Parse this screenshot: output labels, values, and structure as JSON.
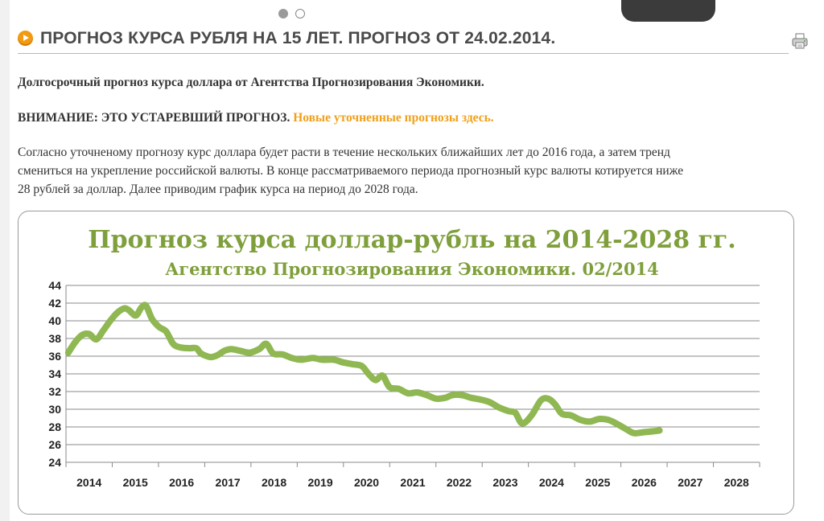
{
  "header": {
    "title": "ПРОГНОЗ КУРСА РУБЛЯ НА 15 ЛЕТ. ПРОГНОЗ ОТ 24.02.2014."
  },
  "icons": {
    "bullet": "orange-arrow-bullet-icon",
    "print": "print-icon"
  },
  "article": {
    "subtitle": "Долгосрочный прогноз курса доллара от Агентства Прогнозирования Экономики.",
    "warning": "ВНИМАНИЕ: ЭТО УСТАРЕВШИЙ ПРОГНОЗ.",
    "warning_link": "Новые уточненные прогнозы здесь.",
    "body_lines": [
      "Согласно уточненому прогнозу курс доллара будет расти в течение нескольких ближайших лет до 2016 года, а затем тренд",
      "смениться на укрепление российской валюты. В конце рассматриваемого периода прогнозный курс валюты котируется ниже",
      "28 рублей за доллар. Далее приводим график курса на период до 2028 года."
    ]
  },
  "colors": {
    "accent": "#f0b52f",
    "link": "#f0a01a",
    "series": "#8fb752",
    "chart_title": "#7f9f3c"
  },
  "chart_data": {
    "type": "line",
    "title": "Прогноз курса доллар-рубль на 2014-2028 гг.",
    "subtitle": "Агентство Прогнозирования Экономики.  02/2014",
    "xlabel": "",
    "ylabel": "",
    "x_ticks": [
      "2014",
      "2015",
      "2016",
      "2017",
      "2018",
      "2019",
      "2020",
      "2021",
      "2022",
      "2023",
      "2024",
      "2025",
      "2026",
      "2027",
      "2028"
    ],
    "xlim": [
      2013.7,
      2028.6
    ],
    "ylim": [
      24,
      44
    ],
    "y_ticks": [
      24,
      26,
      28,
      30,
      32,
      34,
      36,
      38,
      40,
      42,
      44
    ],
    "grid": true,
    "legend": "none",
    "series": [
      {
        "name": "",
        "points": [
          [
            2013.75,
            36.4
          ],
          [
            2013.9,
            37.6
          ],
          [
            2014.05,
            38.4
          ],
          [
            2014.2,
            38.5
          ],
          [
            2014.35,
            37.9
          ],
          [
            2014.5,
            38.9
          ],
          [
            2014.65,
            40.0
          ],
          [
            2014.8,
            40.9
          ],
          [
            2014.95,
            41.4
          ],
          [
            2015.05,
            41.2
          ],
          [
            2015.2,
            40.6
          ],
          [
            2015.32,
            41.5
          ],
          [
            2015.42,
            41.7
          ],
          [
            2015.55,
            40.2
          ],
          [
            2015.7,
            39.3
          ],
          [
            2015.85,
            38.8
          ],
          [
            2016.0,
            37.4
          ],
          [
            2016.15,
            37.0
          ],
          [
            2016.35,
            36.9
          ],
          [
            2016.5,
            36.9
          ],
          [
            2016.6,
            36.3
          ],
          [
            2016.8,
            35.9
          ],
          [
            2016.95,
            36.1
          ],
          [
            2017.1,
            36.6
          ],
          [
            2017.25,
            36.8
          ],
          [
            2017.45,
            36.6
          ],
          [
            2017.65,
            36.4
          ],
          [
            2017.85,
            36.8
          ],
          [
            2018.0,
            37.4
          ],
          [
            2018.15,
            36.3
          ],
          [
            2018.35,
            36.2
          ],
          [
            2018.55,
            35.8
          ],
          [
            2018.75,
            35.6
          ],
          [
            2019.0,
            35.8
          ],
          [
            2019.2,
            35.6
          ],
          [
            2019.45,
            35.6
          ],
          [
            2019.65,
            35.3
          ],
          [
            2019.85,
            35.1
          ],
          [
            2020.05,
            34.9
          ],
          [
            2020.2,
            34.0
          ],
          [
            2020.35,
            33.3
          ],
          [
            2020.5,
            33.8
          ],
          [
            2020.65,
            32.5
          ],
          [
            2020.85,
            32.3
          ],
          [
            2021.05,
            31.8
          ],
          [
            2021.25,
            31.9
          ],
          [
            2021.45,
            31.6
          ],
          [
            2021.65,
            31.2
          ],
          [
            2021.85,
            31.3
          ],
          [
            2022.0,
            31.6
          ],
          [
            2022.2,
            31.6
          ],
          [
            2022.4,
            31.3
          ],
          [
            2022.6,
            31.1
          ],
          [
            2022.8,
            30.8
          ],
          [
            2023.0,
            30.2
          ],
          [
            2023.2,
            29.8
          ],
          [
            2023.35,
            29.6
          ],
          [
            2023.5,
            28.4
          ],
          [
            2023.7,
            29.3
          ],
          [
            2023.9,
            31.0
          ],
          [
            2024.05,
            31.2
          ],
          [
            2024.2,
            30.6
          ],
          [
            2024.35,
            29.5
          ],
          [
            2024.55,
            29.3
          ],
          [
            2024.75,
            28.8
          ],
          [
            2024.95,
            28.6
          ],
          [
            2025.15,
            28.9
          ],
          [
            2025.35,
            28.8
          ],
          [
            2025.55,
            28.3
          ],
          [
            2025.75,
            27.7
          ],
          [
            2025.9,
            27.3
          ],
          [
            2026.1,
            27.4
          ],
          [
            2026.3,
            27.5
          ],
          [
            2026.45,
            27.6
          ]
        ]
      }
    ]
  }
}
